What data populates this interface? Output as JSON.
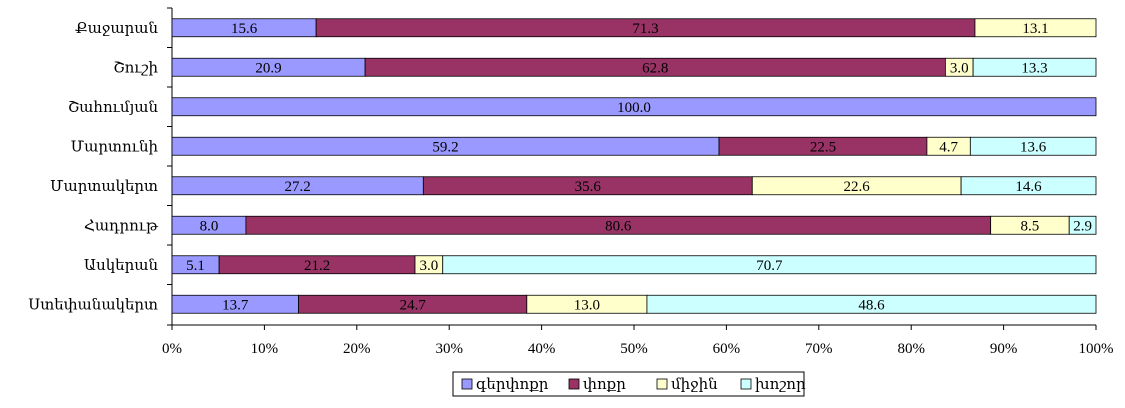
{
  "chart_data": {
    "type": "bar",
    "orientation": "horizontal",
    "stacked": "percent",
    "categories": [
      "Քաջարան",
      "Շուշի",
      "Շահումյան",
      "Մարտունի",
      "Մարտակերտ",
      "Հադրութ",
      "Ասկերան",
      "Ստեփանակերտ"
    ],
    "series": [
      {
        "name": "գերփոքր",
        "color": "#9999ff",
        "values": [
          15.6,
          20.9,
          100.0,
          59.2,
          27.2,
          8.0,
          5.1,
          13.7
        ]
      },
      {
        "name": "փոքր",
        "color": "#993366",
        "values": [
          71.3,
          62.8,
          0,
          22.5,
          35.6,
          80.6,
          21.2,
          24.7
        ]
      },
      {
        "name": "միջին",
        "color": "#ffffcc",
        "values": [
          13.1,
          3.0,
          0,
          4.7,
          22.6,
          8.5,
          3.0,
          13.0
        ]
      },
      {
        "name": "խոշոր",
        "color": "#ccffff",
        "values": [
          0,
          13.3,
          0,
          13.6,
          14.6,
          2.9,
          70.7,
          48.6
        ]
      }
    ],
    "xlim": [
      0,
      100
    ],
    "x_ticks": [
      "0%",
      "10%",
      "20%",
      "30%",
      "40%",
      "50%",
      "60%",
      "70%",
      "80%",
      "90%",
      "100%"
    ],
    "legend_position": "bottom",
    "grid": false,
    "title": "",
    "xlabel": "",
    "ylabel": ""
  }
}
